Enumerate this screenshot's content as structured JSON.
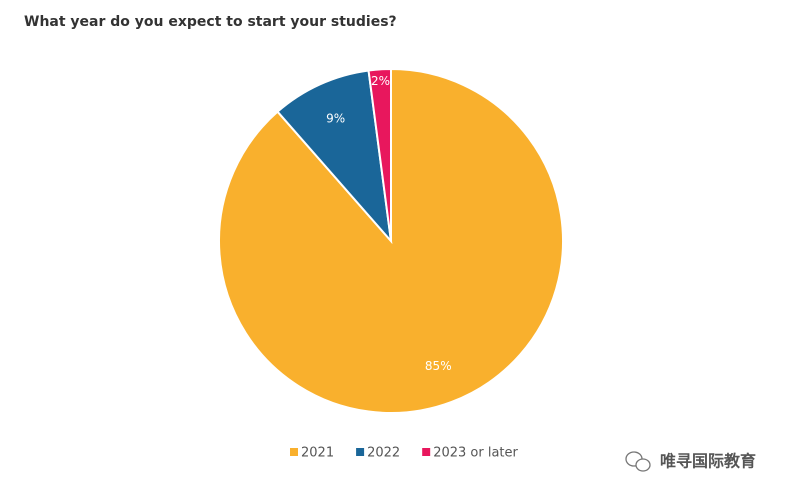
{
  "chart_data": {
    "type": "pie",
    "title": "What year do you expect to start your studies?",
    "categories": [
      "2021",
      "2022",
      "2023 or later"
    ],
    "values": [
      85,
      9,
      2
    ],
    "value_labels": [
      "85%",
      "9%",
      "2%"
    ],
    "colors": [
      "#f9b02d",
      "#1a6699",
      "#e8175d"
    ],
    "legend": "bottom"
  },
  "watermark": "唯寻国际教育"
}
